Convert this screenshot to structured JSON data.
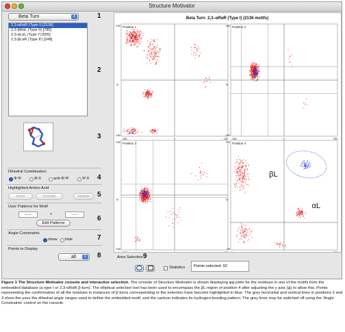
{
  "window": {
    "title": "Structure Motivator"
  },
  "controls": {
    "motif_type": "Beta Turn",
    "motif_items": [
      {
        "label": "2,3-αRαR (Type I) [2136]",
        "selected": true
      },
      {
        "label": "2,3-βRαL (Type II) [785]",
        "selected": false
      },
      {
        "label": "2,3-αLαL (Type I') [555]",
        "selected": false
      },
      {
        "label": "2,3-βLαR (Type II') [248]",
        "selected": false
      }
    ],
    "numbers": [
      "1",
      "2",
      "3",
      "4",
      "5",
      "6",
      "7",
      "8",
      "9"
    ],
    "dihedral": {
      "title": "Dihedral Combination",
      "options": [
        {
          "label": "Φ:Ψ",
          "selected": true
        },
        {
          "label": "Φ:Χ",
          "selected": false
        },
        {
          "label": "anti-Φ:Ψ",
          "selected": false
        },
        {
          "label": "Ψ:Χ",
          "selected": false
        }
      ]
    },
    "amino": {
      "title": "Highlighted Amino Acid",
      "select1": "none",
      "select2": "include",
      "update": "Update"
    },
    "user_patterns": {
      "title": "User Patterns for Motif",
      "field1": "-----",
      "plus": "+",
      "field2": "-----",
      "edit": "Edit Patterns"
    },
    "angle": {
      "title": "Angle Constraints",
      "show": "show",
      "hide": "hide"
    },
    "points": {
      "title": "Points to Display",
      "value": "all"
    },
    "area": {
      "title": "Area Selection",
      "statistics": "Statistics",
      "points_selected": "Points selected: 92"
    }
  },
  "plot": {
    "title": "Beta Turn: 2,3–αRαR (Type I) (2136 motifs)",
    "panels": [
      {
        "label": "Position 1",
        "ytop": "180",
        "ybot": "-180",
        "xleft": "-180",
        "xmid": "0",
        "xright": "180",
        "yaxis": "Ψ",
        "xaxis": "Φ"
      },
      {
        "label": "Position 2",
        "ytop": "180",
        "ybot": "-180",
        "xleft": "-180",
        "xmid": "0",
        "xright": "180",
        "yaxis": "Ψ",
        "xaxis": "Φ"
      },
      {
        "label": "Position 3",
        "ytop": "180",
        "ybot": "-180",
        "xleft": "-180",
        "xmid": "0",
        "xright": "180",
        "yaxis": "Ψ",
        "xaxis": "Φ"
      },
      {
        "label": "Position 4",
        "ytop": "270",
        "ybot": "-90",
        "xleft": "0",
        "xmid": "0",
        "xright": "360",
        "yaxis": "Ψ",
        "xaxis": "Φ"
      }
    ],
    "annotations": {
      "beta_l": "βL",
      "alpha_l": "αL"
    },
    "colors": {
      "points": "#e01010",
      "highlight": "#2a3fd6",
      "lines": "#9a9a9a",
      "ellipse": "#3060c0"
    }
  },
  "caption": {
    "bold": "Figure 1 The Structure Motivator console and interactive selection.",
    "text": " The console of Structure Motivator is shown displaying φψ plots for the residues in one of the motifs from the embedded database (a type I or 2,3-αRαR β-turn). The elliptical selection tool has been used to encompass the βL region of position 4 after adjusting the y axis (ψ) to allow this. Points representing the conformation of all the residues in instances of β-turns corresponding to the selection have become highlighted in blue. The grey horizontal and vertical lines in positions 2 and 3 show the uses the dihedral angle ranges used to define the embedded motif, and the cartoon indicates its hydrogen-bonding pattern. The grey lines may be switched off using the 'Angle Constraints' control on the console."
  }
}
